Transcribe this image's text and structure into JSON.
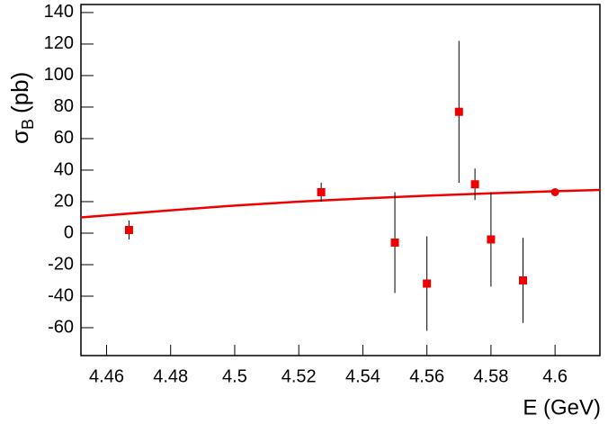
{
  "chart_data": {
    "type": "scatter",
    "xlabel": "E (GeV)",
    "ylabel": "σ",
    "ylabel_sub": "B",
    "ylabel_unit": "(pb)",
    "x": [
      4.467,
      4.527,
      4.55,
      4.56,
      4.57,
      4.575,
      4.58,
      4.59,
      4.6
    ],
    "values": [
      2,
      26,
      -6,
      -32,
      77,
      31,
      -4,
      -30,
      26
    ],
    "errors": [
      6,
      6,
      32,
      30,
      45,
      10,
      30,
      27,
      2
    ],
    "markers": [
      "square",
      "square",
      "square",
      "square",
      "square",
      "square",
      "square",
      "square",
      "circle"
    ],
    "color": "#ee0000",
    "fit": {
      "color": "#ee0000",
      "x": [
        4.452,
        4.48,
        4.5,
        4.52,
        4.54,
        4.56,
        4.58,
        4.6,
        4.614
      ],
      "values": [
        10,
        14.5,
        17.5,
        20,
        22,
        23.8,
        25.3,
        26.6,
        27.4
      ]
    },
    "xlim": [
      4.452,
      4.614
    ],
    "ylim": [
      -77.7,
      145.1
    ],
    "xticks": [
      4.46,
      4.48,
      4.5,
      4.52,
      4.54,
      4.56,
      4.58,
      4.6
    ],
    "yticks": [
      -60,
      -40,
      -20,
      0,
      20,
      40,
      60,
      80,
      100,
      120,
      140
    ]
  }
}
